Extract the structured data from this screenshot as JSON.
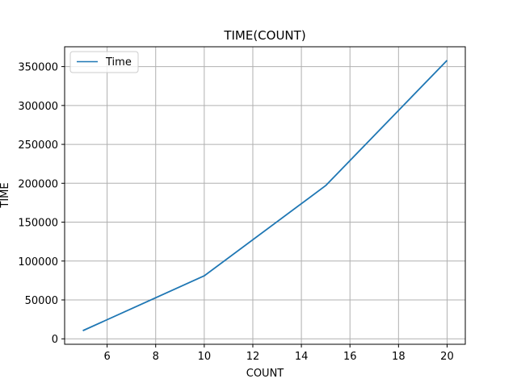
{
  "chart_data": {
    "type": "line",
    "title": "TIME(COUNT)",
    "xlabel": "COUNT",
    "ylabel": "TIME",
    "x": [
      5,
      10,
      15,
      20
    ],
    "series": [
      {
        "name": "Time",
        "values": [
          10500,
          81000,
          197000,
          358000
        ]
      }
    ],
    "xlim": [
      4.25,
      20.75
    ],
    "ylim": [
      -7000,
      375500
    ],
    "xticks": [
      6,
      8,
      10,
      12,
      14,
      16,
      18,
      20
    ],
    "yticks": [
      0,
      50000,
      100000,
      150000,
      200000,
      250000,
      300000,
      350000
    ],
    "grid": true,
    "legend": "top-left",
    "colors": {
      "series": "#1f77b4",
      "grid": "#b0b0b0",
      "axes": "#000000"
    }
  }
}
